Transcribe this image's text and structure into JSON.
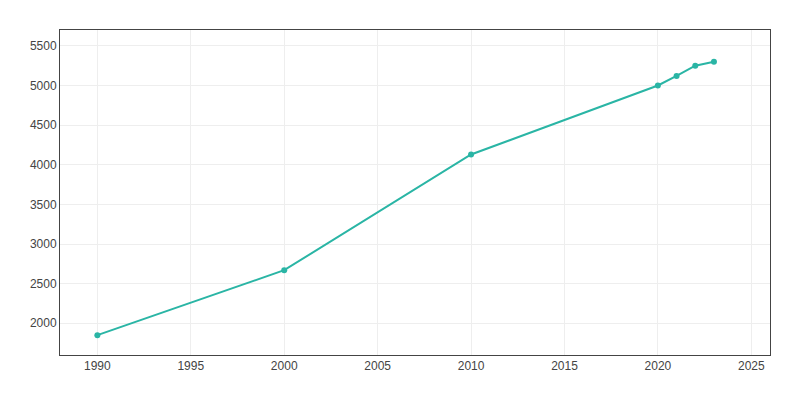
{
  "chart_data": {
    "type": "line",
    "x": [
      1990,
      2000,
      2010,
      2020,
      2021,
      2022,
      2023
    ],
    "values": [
      1850,
      2670,
      4130,
      5000,
      5120,
      5250,
      5300
    ],
    "color": "#2ab5a5",
    "marker": "circle",
    "xlim": [
      1988,
      2026
    ],
    "ylim": [
      1600,
      5700
    ],
    "xticks": [
      1990,
      1995,
      2000,
      2005,
      2010,
      2015,
      2020,
      2025
    ],
    "yticks": [
      2000,
      2500,
      3000,
      3500,
      4000,
      4500,
      5000,
      5500
    ],
    "grid": true
  }
}
